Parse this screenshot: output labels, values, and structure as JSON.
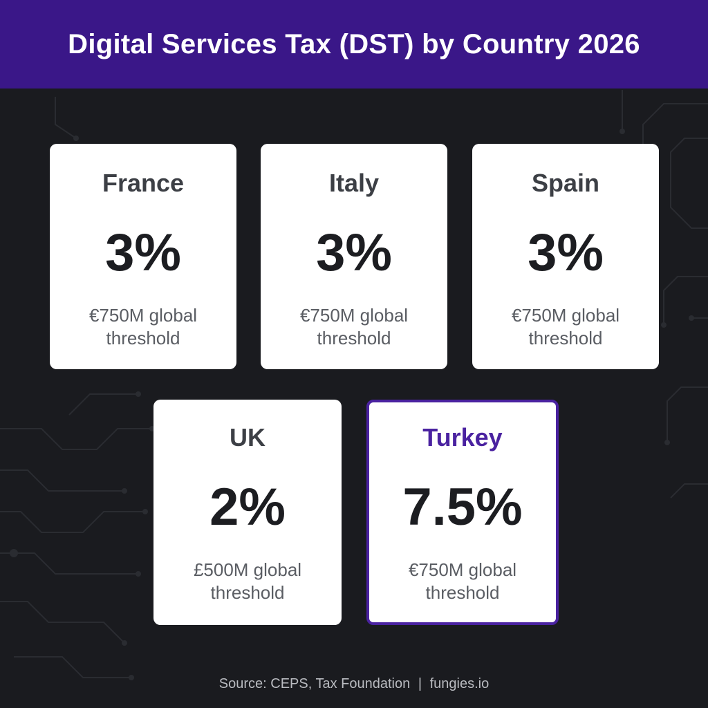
{
  "header": {
    "title": "Digital Services Tax (DST) by Country 2026"
  },
  "cards": [
    {
      "country": "France",
      "rate": "3%",
      "note_line1": "€750M global",
      "note_line2": "threshold"
    },
    {
      "country": "Italy",
      "rate": "3%",
      "note_line1": "€750M global",
      "note_line2": "threshold"
    },
    {
      "country": "Spain",
      "rate": "3%",
      "note_line1": "€750M global",
      "note_line2": "threshold"
    },
    {
      "country": "UK",
      "rate": "2%",
      "note_line1": "£500M global",
      "note_line2": "threshold"
    },
    {
      "country": "Turkey",
      "rate": "7.5%",
      "note_line1": "€750M global",
      "note_line2": "threshold",
      "highlighted": true
    }
  ],
  "footer": {
    "source": "Source: CEPS, Tax Foundation",
    "separator": "|",
    "site": "fungies.io"
  },
  "colors": {
    "header_bg": "#3a1788",
    "page_bg": "#1a1b1f",
    "accent": "#4a22a0",
    "card_bg": "#ffffff"
  }
}
